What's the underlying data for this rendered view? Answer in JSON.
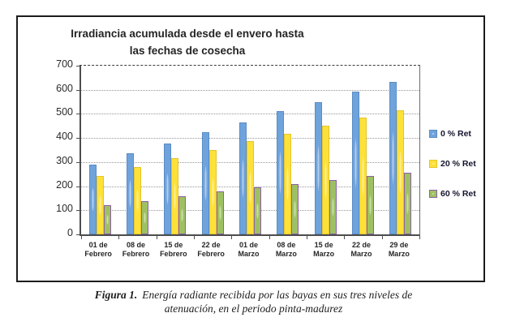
{
  "figure": {
    "caption": {
      "label": "Figura 1.",
      "line1": "Energía radiante recibida por las bayas en sus tres niveles de",
      "line2": "atenuación, en el periodo pinta-madurez"
    }
  },
  "chart_data": {
    "type": "bar",
    "title_line1": "Irradiancia acumulada  desde el envero hasta",
    "title_line2": "las fechas de cosecha",
    "categories": [
      "01 de Febrero",
      "08 de Febrero",
      "15 de Febrero",
      "22 de Febrero",
      "01 de Marzo",
      "08 de Marzo",
      "15 de Marzo",
      "22 de Marzo",
      "29 de Marzo"
    ],
    "series": [
      {
        "name": "0 % Ret",
        "color": "#6fa3dc",
        "border": "#5a8cc6",
        "values": [
          290,
          335,
          378,
          424,
          466,
          510,
          550,
          591,
          634
        ]
      },
      {
        "name": "20 % Ret",
        "color": "#fee138",
        "border": "#e3c42f",
        "values": [
          243,
          280,
          315,
          351,
          386,
          418,
          451,
          484,
          515
        ]
      },
      {
        "name": "60 % Ret",
        "color": "#9dc162",
        "border": "#8e5fa8",
        "values": [
          122,
          138,
          157,
          177,
          194,
          208,
          227,
          242,
          257
        ]
      }
    ],
    "ylim": [
      0,
      700
    ],
    "ytick_step": 100,
    "grid": true,
    "legend_position": "right",
    "xlabel": "",
    "ylabel": ""
  }
}
